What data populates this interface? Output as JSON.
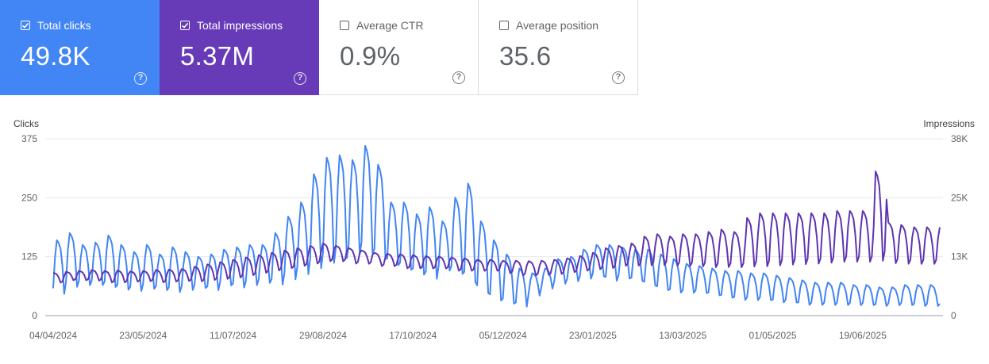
{
  "metrics": [
    {
      "label": "Total clicks",
      "value": "49.8K",
      "checked": true,
      "color": "#4285f4"
    },
    {
      "label": "Total impressions",
      "value": "5.37M",
      "checked": true,
      "color": "#673ab7"
    },
    {
      "label": "Average CTR",
      "value": "0.9%",
      "checked": false
    },
    {
      "label": "Average position",
      "value": "35.6",
      "checked": false
    }
  ],
  "help_glyph": "?",
  "chart_data": {
    "type": "line",
    "left_axis_label": "Clicks",
    "right_axis_label": "Impressions",
    "left_ticks": [
      "375",
      "250",
      "125",
      "0"
    ],
    "right_ticks": [
      "38K",
      "25K",
      "13K",
      "0"
    ],
    "left_ylim": [
      0,
      375
    ],
    "right_ylim": [
      0,
      38000
    ],
    "x_tick_labels": [
      "04/04/2024",
      "23/05/2024",
      "11/07/2024",
      "29/08/2024",
      "17/10/2024",
      "05/12/2024",
      "23/01/2025",
      "13/03/2025",
      "01/05/2025",
      "19/06/2025"
    ],
    "x_range": [
      "2024-04-04",
      "2025-07-31"
    ],
    "grid": true,
    "series": [
      {
        "name": "Total clicks",
        "axis": "left",
        "color": "#4285f4",
        "weekly_low": [
          40,
          55,
          60,
          60,
          55,
          50,
          48,
          52,
          50,
          45,
          50,
          55,
          50,
          60,
          55,
          60,
          65,
          60,
          70,
          80,
          90,
          100,
          110,
          120,
          120,
          110,
          100,
          90,
          80,
          70,
          90,
          80,
          60,
          40,
          25,
          20,
          15,
          40,
          55,
          65,
          70,
          75,
          80,
          70,
          75,
          70,
          60,
          50,
          45,
          45,
          45,
          40,
          35,
          30,
          30,
          30,
          25,
          25,
          20,
          20,
          20,
          20,
          20,
          20,
          18,
          20,
          20,
          18
        ],
        "weekly_high": [
          160,
          175,
          150,
          155,
          170,
          150,
          135,
          150,
          130,
          145,
          135,
          125,
          130,
          140,
          145,
          150,
          150,
          175,
          210,
          240,
          300,
          335,
          340,
          330,
          360,
          320,
          240,
          240,
          215,
          230,
          200,
          250,
          280,
          200,
          160,
          130,
          100,
          90,
          100,
          120,
          125,
          140,
          150,
          150,
          145,
          140,
          140,
          130,
          120,
          110,
          105,
          100,
          95,
          95,
          90,
          90,
          85,
          80,
          75,
          70,
          70,
          70,
          65,
          65,
          60,
          60,
          65,
          65
        ]
      },
      {
        "name": "Total impressions",
        "axis": "right",
        "color": "#5e35b1",
        "weekly_low": [
          7000,
          7500,
          7500,
          7400,
          7000,
          7000,
          7200,
          7300,
          7000,
          7200,
          7300,
          7200,
          7500,
          7700,
          8000,
          8500,
          9000,
          9500,
          10000,
          10500,
          11000,
          11500,
          11500,
          11000,
          11000,
          10500,
          10500,
          10000,
          10000,
          10000,
          10000,
          9500,
          9500,
          9500,
          9500,
          9000,
          8500,
          8500,
          8600,
          8800,
          9200,
          9500,
          9800,
          10000,
          10500,
          10500,
          10500,
          10500,
          10400,
          10300,
          10200,
          10000,
          10000,
          10000,
          10000,
          10000,
          10200,
          10400,
          10500,
          10600,
          10800,
          11000,
          11000,
          11000,
          10800,
          10800,
          10700,
          10700
        ],
        "weekly_high": [
          9200,
          9400,
          9600,
          9800,
          9600,
          9700,
          9500,
          9600,
          9800,
          9900,
          10000,
          10500,
          11000,
          11500,
          12000,
          12500,
          13000,
          13500,
          14000,
          14500,
          15000,
          15500,
          15000,
          14500,
          14000,
          13500,
          13300,
          13200,
          13000,
          12800,
          12700,
          12500,
          12300,
          12000,
          12000,
          11800,
          11800,
          11700,
          11800,
          12000,
          12300,
          12800,
          13500,
          14500,
          15000,
          15500,
          17000,
          17500,
          17000,
          17500,
          17500,
          18000,
          18500,
          18000,
          21000,
          22000,
          22000,
          22000,
          22000,
          22000,
          22000,
          22500,
          22500,
          22500,
          31000,
          20000,
          19500,
          19000
        ]
      }
    ]
  }
}
